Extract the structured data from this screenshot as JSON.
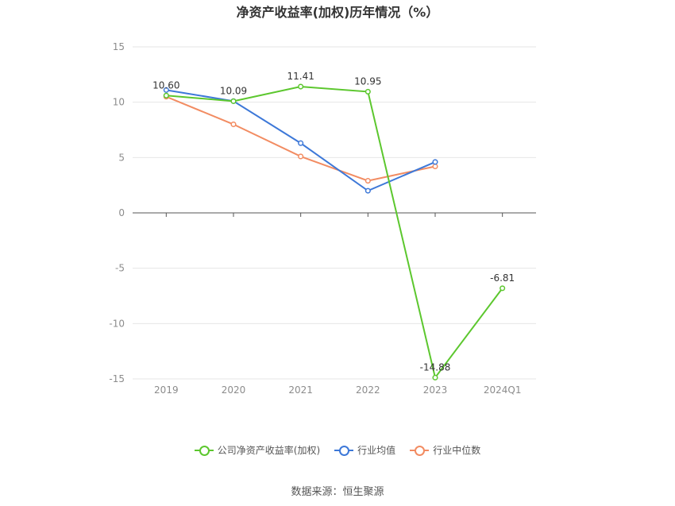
{
  "title": "净资产收益率(加权)历年情况（%）",
  "source": "数据来源：恒生聚源",
  "chart_data": {
    "type": "line",
    "categories": [
      "2019",
      "2020",
      "2021",
      "2022",
      "2023",
      "2024Q1"
    ],
    "ylim": [
      -15,
      15
    ],
    "yticks": [
      15,
      10,
      5,
      0,
      -5,
      -10,
      -15
    ],
    "grid": true,
    "legend_position": "bottom",
    "series": [
      {
        "name": "公司净资产收益率(加权)",
        "color": "#5cc72e",
        "values": [
          10.6,
          10.09,
          11.41,
          10.95,
          -14.88,
          -6.81
        ],
        "labels": [
          "10.60",
          "10.09",
          "11.41",
          "10.95",
          "-14.88",
          "-6.81"
        ]
      },
      {
        "name": "行业均值",
        "color": "#3d78d8",
        "values": [
          11.1,
          10.1,
          6.3,
          2.0,
          4.6,
          null
        ]
      },
      {
        "name": "行业中位数",
        "color": "#f28c62",
        "values": [
          10.5,
          8.0,
          5.1,
          2.9,
          4.2,
          null
        ]
      }
    ]
  }
}
